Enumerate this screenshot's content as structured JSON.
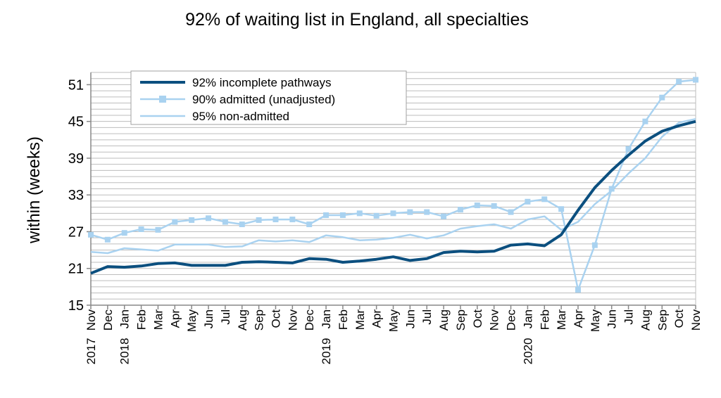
{
  "chart_data": {
    "type": "line",
    "title": "92% of waiting list in England, all specialties",
    "xlabel": "",
    "ylabel": "within  (weeks)",
    "ylim": [
      15,
      53
    ],
    "yticks": [
      15,
      21,
      27,
      33,
      39,
      45,
      51
    ],
    "grid": true,
    "legend_position": "top-left",
    "categories": [
      "Nov",
      "Dec",
      "Jan",
      "Feb",
      "Mar",
      "Apr",
      "May",
      "Jun",
      "Jul",
      "Aug",
      "Sep",
      "Oct",
      "Nov",
      "Dec",
      "Jan",
      "Feb",
      "Mar",
      "Apr",
      "May",
      "Jun",
      "Jul",
      "Aug",
      "Sep",
      "Oct",
      "Nov",
      "Dec",
      "Jan",
      "Feb",
      "Mar",
      "Apr",
      "May",
      "Jun",
      "Jul",
      "Aug",
      "Sep",
      "Oct",
      "Nov"
    ],
    "year_labels": [
      {
        "index": 0,
        "text": "2017"
      },
      {
        "index": 2,
        "text": "2018"
      },
      {
        "index": 14,
        "text": "2019"
      },
      {
        "index": 26,
        "text": "2020"
      }
    ],
    "series": [
      {
        "name": "92%  incomplete  pathways",
        "color": "#0b4f7f",
        "marker": "none",
        "width": 4,
        "values": [
          20.2,
          21.3,
          21.2,
          21.4,
          21.8,
          21.9,
          21.5,
          21.5,
          21.5,
          22.0,
          22.1,
          22.0,
          21.9,
          22.6,
          22.5,
          22.0,
          22.2,
          22.5,
          22.9,
          22.3,
          22.6,
          23.6,
          23.8,
          23.7,
          23.8,
          24.8,
          25.0,
          24.7,
          26.5,
          30.5,
          34.2,
          37.0,
          39.5,
          41.8,
          43.4,
          44.3,
          45.0
        ]
      },
      {
        "name": "90%  admitted  (unadjusted)",
        "color": "#a9d2f0",
        "marker": "square",
        "width": 2.5,
        "values": [
          26.5,
          25.7,
          26.8,
          27.4,
          27.3,
          28.6,
          28.9,
          29.2,
          28.6,
          28.2,
          28.9,
          29.0,
          29.0,
          28.2,
          29.7,
          29.7,
          30.0,
          29.6,
          30.0,
          30.2,
          30.2,
          29.5,
          30.6,
          31.3,
          31.2,
          30.2,
          31.9,
          32.3,
          30.7,
          17.5,
          24.8,
          34.0,
          40.5,
          45.0,
          48.9,
          51.5,
          51.8
        ]
      },
      {
        "name": "95%  non-admitted",
        "color": "#a9d2f0",
        "marker": "none",
        "width": 2.5,
        "values": [
          23.7,
          23.5,
          24.3,
          24.1,
          23.9,
          24.9,
          24.9,
          24.9,
          24.5,
          24.6,
          25.6,
          25.4,
          25.6,
          25.3,
          26.4,
          26.1,
          25.6,
          25.7,
          26.0,
          26.5,
          25.9,
          26.4,
          27.5,
          27.9,
          28.2,
          27.5,
          29.0,
          29.5,
          27.3,
          28.6,
          31.5,
          33.7,
          36.5,
          39.0,
          42.5,
          44.8,
          45.4
        ]
      }
    ]
  }
}
